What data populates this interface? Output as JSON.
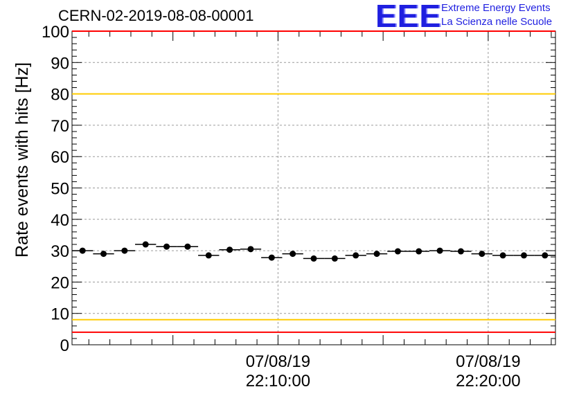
{
  "chart_data": {
    "type": "scatter",
    "title": "CERN-02-2019-08-08-00001",
    "ylabel": "Rate events with hits [Hz]",
    "xlabel": "",
    "ylim": [
      0,
      100
    ],
    "yticks": [
      0,
      10,
      20,
      30,
      40,
      50,
      60,
      70,
      80,
      90,
      100
    ],
    "xlim_minutes": [
      0,
      23.0
    ],
    "xticks": [
      {
        "minute": 9.8,
        "date": "07/08/19",
        "time": "22:10:00"
      },
      {
        "minute": 19.8,
        "date": "07/08/19",
        "time": "22:20:00"
      }
    ],
    "grid": true,
    "reference_lines": [
      {
        "y": 100,
        "color": "#ff0000"
      },
      {
        "y": 80,
        "color": "#ffcc00"
      },
      {
        "y": 8,
        "color": "#ffcc00"
      },
      {
        "y": 4,
        "color": "#ff0000"
      }
    ],
    "points": [
      {
        "x": 0.5,
        "y": 30.0,
        "xerr": 0.5
      },
      {
        "x": 1.5,
        "y": 29.0,
        "xerr": 0.5
      },
      {
        "x": 2.5,
        "y": 30.0,
        "xerr": 0.5
      },
      {
        "x": 3.5,
        "y": 32.0,
        "xerr": 0.5
      },
      {
        "x": 4.5,
        "y": 31.3,
        "xerr": 0.5
      },
      {
        "x": 5.5,
        "y": 31.3,
        "xerr": 0.5
      },
      {
        "x": 6.5,
        "y": 28.5,
        "xerr": 0.5
      },
      {
        "x": 7.5,
        "y": 30.3,
        "xerr": 0.5
      },
      {
        "x": 8.5,
        "y": 30.5,
        "xerr": 0.5
      },
      {
        "x": 9.5,
        "y": 27.8,
        "xerr": 0.5
      },
      {
        "x": 10.5,
        "y": 29.0,
        "xerr": 0.5
      },
      {
        "x": 11.5,
        "y": 27.5,
        "xerr": 0.5
      },
      {
        "x": 12.5,
        "y": 27.5,
        "xerr": 0.5
      },
      {
        "x": 13.5,
        "y": 28.5,
        "xerr": 0.5
      },
      {
        "x": 14.5,
        "y": 29.0,
        "xerr": 0.5
      },
      {
        "x": 15.5,
        "y": 29.8,
        "xerr": 0.5
      },
      {
        "x": 16.5,
        "y": 29.8,
        "xerr": 0.5
      },
      {
        "x": 17.5,
        "y": 30.0,
        "xerr": 0.5
      },
      {
        "x": 18.5,
        "y": 29.8,
        "xerr": 0.5
      },
      {
        "x": 19.5,
        "y": 29.0,
        "xerr": 0.5
      },
      {
        "x": 20.5,
        "y": 28.5,
        "xerr": 0.5
      },
      {
        "x": 21.5,
        "y": 28.5,
        "xerr": 0.5
      },
      {
        "x": 22.5,
        "y": 28.5,
        "xerr": 0.5
      }
    ]
  },
  "logo": {
    "mark": "EEE",
    "line1": "Extreme Energy Events",
    "line2": "La Scienza nelle Scuole"
  }
}
